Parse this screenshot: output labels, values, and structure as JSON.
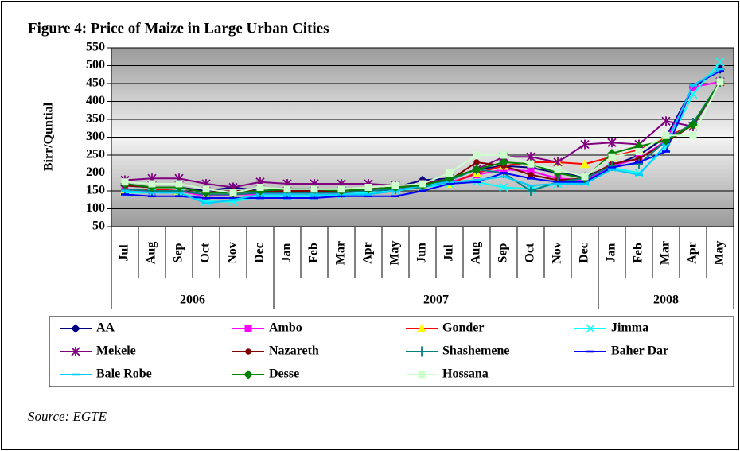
{
  "chart_data": {
    "type": "line",
    "title": "Figure 4: Price of Maize in Large Urban Cities",
    "y_label": "Birr/Quntial",
    "source": "Source: EGTE",
    "categories": [
      "Jul",
      "Aug",
      "Sep",
      "Oct",
      "Nov",
      "Dec",
      "Jan",
      "Feb",
      "Mar",
      "Apr",
      "May",
      "Jun",
      "Jul",
      "Aug",
      "Sep",
      "Oct",
      "Nov",
      "Dec",
      "Jan",
      "Feb",
      "Mar",
      "Apr",
      "May"
    ],
    "groups": [
      {
        "label": "2006",
        "size": 6
      },
      {
        "label": "2007",
        "size": 12
      },
      {
        "label": "2008",
        "size": 5
      }
    ],
    "ylim": [
      50,
      550
    ],
    "yticks": [
      50,
      100,
      150,
      200,
      250,
      300,
      350,
      400,
      450,
      500,
      550
    ],
    "grid": true,
    "legend": "bottom",
    "series": [
      {
        "name": "AA",
        "color": "#000080",
        "marker": "diamond",
        "marker_color": "#000080",
        "values": [
          165,
          160,
          160,
          150,
          160,
          150,
          155,
          155,
          150,
          155,
          160,
          180,
          185,
          210,
          220,
          215,
          200,
          190,
          220,
          250,
          300,
          440,
          490
        ]
      },
      {
        "name": "Ambo",
        "color": "#ff00ff",
        "marker": "square",
        "marker_color": "#ff00ff",
        "values": [
          150,
          150,
          150,
          135,
          140,
          140,
          145,
          145,
          145,
          150,
          155,
          160,
          175,
          195,
          210,
          205,
          185,
          180,
          220,
          240,
          290,
          440,
          455
        ]
      },
      {
        "name": "Gonder",
        "color": "#ff0000",
        "marker": "triangle",
        "marker_color": "#ffff00",
        "values": [
          150,
          155,
          150,
          140,
          140,
          145,
          150,
          150,
          150,
          155,
          160,
          165,
          170,
          200,
          220,
          230,
          230,
          225,
          245,
          265,
          300,
          335,
          455
        ]
      },
      {
        "name": "Jimma",
        "color": "#00ffff",
        "marker": "x",
        "marker_color": "#00ffff",
        "values": [
          145,
          145,
          145,
          120,
          120,
          135,
          135,
          135,
          140,
          145,
          150,
          160,
          170,
          175,
          160,
          155,
          170,
          175,
          215,
          200,
          270,
          420,
          510
        ]
      },
      {
        "name": "Mekele",
        "color": "#800080",
        "marker": "star",
        "marker_color": "#800080",
        "values": [
          180,
          185,
          185,
          170,
          160,
          175,
          170,
          170,
          170,
          170,
          165,
          170,
          185,
          210,
          245,
          245,
          230,
          280,
          285,
          280,
          345,
          330,
          455
        ]
      },
      {
        "name": "Nazareth",
        "color": "#800000",
        "marker": "circle",
        "marker_color": "#800000",
        "values": [
          165,
          160,
          160,
          145,
          150,
          150,
          150,
          150,
          150,
          155,
          160,
          170,
          180,
          230,
          220,
          195,
          180,
          185,
          225,
          240,
          285,
          335,
          455
        ]
      },
      {
        "name": "Shashemene",
        "color": "#008080",
        "marker": "plus",
        "marker_color": "#008080",
        "values": [
          155,
          150,
          150,
          140,
          140,
          145,
          145,
          145,
          145,
          150,
          155,
          160,
          180,
          210,
          200,
          150,
          175,
          185,
          220,
          225,
          290,
          340,
          455
        ]
      },
      {
        "name": "Baher Dar",
        "color": "#0000ff",
        "marker": "dash",
        "marker_color": "#0000ff",
        "values": [
          140,
          135,
          135,
          130,
          130,
          130,
          130,
          130,
          135,
          135,
          135,
          150,
          170,
          175,
          200,
          185,
          175,
          175,
          215,
          230,
          260,
          445,
          485
        ]
      },
      {
        "name": "Bale Robe",
        "color": "#00ccff",
        "marker": "dash",
        "marker_color": "#00ccff",
        "values": [
          150,
          145,
          145,
          115,
          125,
          140,
          140,
          140,
          140,
          140,
          150,
          165,
          175,
          180,
          190,
          165,
          170,
          170,
          210,
          195,
          280,
          445,
          490
        ]
      },
      {
        "name": "Desse",
        "color": "#008000",
        "marker": "diamond",
        "marker_color": "#008000",
        "values": [
          170,
          160,
          160,
          145,
          145,
          150,
          155,
          155,
          150,
          155,
          160,
          165,
          185,
          210,
          230,
          225,
          200,
          185,
          255,
          275,
          290,
          335,
          455
        ]
      },
      {
        "name": "Hossana",
        "color": "#ccffcc",
        "marker": "square",
        "marker_color": "#ccffcc",
        "values": [
          175,
          170,
          170,
          155,
          145,
          160,
          155,
          155,
          155,
          160,
          165,
          170,
          200,
          250,
          250,
          225,
          210,
          190,
          245,
          260,
          305,
          305,
          455
        ]
      }
    ]
  }
}
